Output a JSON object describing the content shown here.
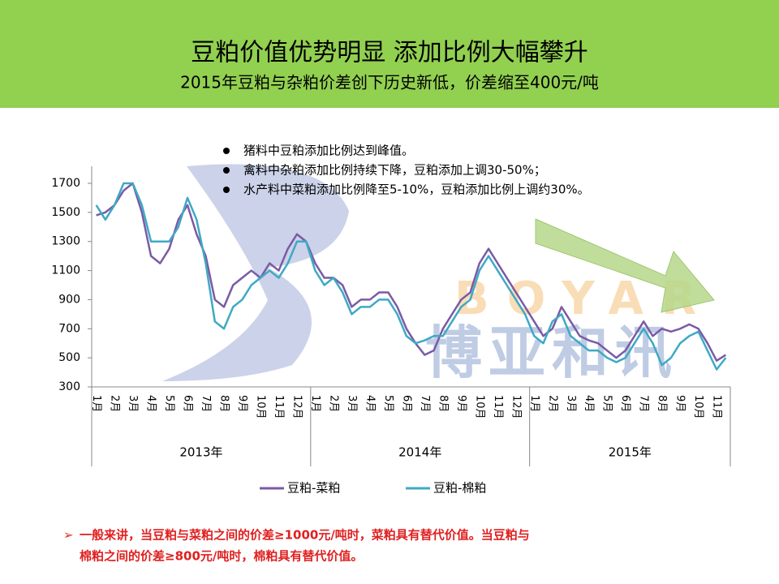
{
  "header": {
    "title": "豆粕价值优势明显 添加比例大幅攀升",
    "subtitle": "2015年豆粕与杂粕价差创下历史新低，价差缩至400元/吨"
  },
  "bullets": [
    "猪料中豆粕添加比例达到峰值。",
    "禽料中杂粕添加比例持续下降，豆粕添加上调30-50%；",
    "水产料中菜粕添加比例降至5-10%，豆粕添加比例上调约30%。"
  ],
  "watermark": [
    "BOYAR",
    "博亚和讯"
  ],
  "note": [
    "一般来讲，当豆粕与菜粕之间的价差≥1000元/吨时，菜粕具有替代价值。当豆粕与",
    "棉粕之间的价差≥800元/吨时，棉粕具有替代价值。"
  ],
  "chart_data": {
    "type": "line",
    "categories": [
      "1月",
      null,
      "2月",
      null,
      "3月",
      null,
      "4月",
      null,
      "5月",
      null,
      "6月",
      null,
      "7月",
      null,
      "8月",
      null,
      "9月",
      null,
      "10月",
      null,
      "11月",
      null,
      "12月",
      null,
      "1月",
      null,
      "2月",
      null,
      "3月",
      null,
      "4月",
      null,
      "5月",
      null,
      "6月",
      null,
      "7月",
      null,
      "8月",
      null,
      "9月",
      null,
      "10月",
      null,
      "11月",
      null,
      "12月",
      null,
      "1月",
      null,
      "2月",
      null,
      "3月",
      null,
      "4月",
      null,
      "5月",
      null,
      "6月",
      null,
      "7月",
      null,
      "8月",
      null,
      "9月",
      null,
      "10月",
      null,
      "11月",
      null
    ],
    "years": [
      "2013年",
      "2014年",
      "2015年"
    ],
    "series": [
      {
        "name": "豆粕-菜粕",
        "color": "#7b5aa6",
        "values": [
          1480,
          1500,
          1550,
          1650,
          1700,
          1500,
          1200,
          1150,
          1250,
          1450,
          1550,
          1350,
          1200,
          900,
          850,
          1000,
          1050,
          1100,
          1050,
          1150,
          1100,
          1250,
          1350,
          1300,
          1150,
          1050,
          1050,
          1000,
          850,
          900,
          900,
          950,
          950,
          850,
          700,
          600,
          520,
          550,
          700,
          800,
          900,
          950,
          1150,
          1250,
          1150,
          1050,
          950,
          850,
          750,
          650,
          700,
          850,
          750,
          650,
          620,
          600,
          550,
          500,
          550,
          650,
          750,
          650,
          700,
          680,
          700,
          730,
          700,
          600,
          480,
          520
        ]
      },
      {
        "name": "豆粕-棉粕",
        "color": "#3fa9c4",
        "values": [
          1550,
          1450,
          1550,
          1700,
          1700,
          1550,
          1300,
          1300,
          1300,
          1400,
          1600,
          1450,
          1150,
          750,
          700,
          850,
          900,
          1000,
          1050,
          1100,
          1050,
          1150,
          1300,
          1300,
          1100,
          1000,
          1050,
          950,
          800,
          850,
          850,
          900,
          900,
          800,
          650,
          600,
          620,
          650,
          650,
          750,
          850,
          900,
          1100,
          1200,
          1100,
          1000,
          900,
          800,
          650,
          600,
          750,
          800,
          650,
          600,
          550,
          550,
          500,
          470,
          500,
          600,
          700,
          600,
          450,
          500,
          600,
          650,
          680,
          550,
          420,
          500
        ]
      }
    ],
    "ylim": [
      300,
      1700
    ],
    "yticks": [
      300,
      500,
      700,
      900,
      1100,
      1300,
      1500,
      1700
    ]
  }
}
